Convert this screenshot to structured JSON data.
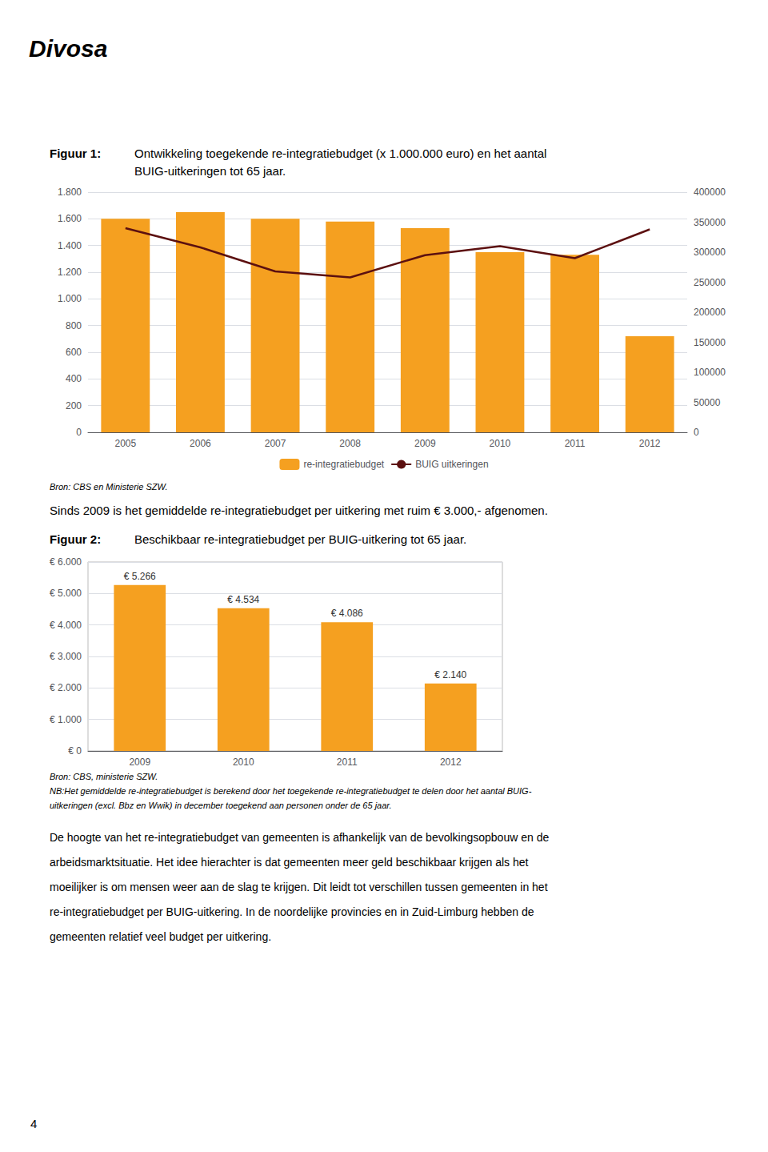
{
  "chart_data": [
    {
      "type": "bar",
      "title": "Figuur 1:",
      "subtitle": "Ontwikkeling toegekende re-integratiebudget (x 1.000.000 euro) en het aantal\nBUIG-uitkeringen tot 65 jaar.",
      "categories": [
        "2005",
        "2006",
        "2007",
        "2008",
        "2009",
        "2010",
        "2011",
        "2012"
      ],
      "series": [
        {
          "name": "re-integratiebudget",
          "type": "bar",
          "color": "#F5A020",
          "values": [
            1.6,
            1.65,
            1.6,
            1.58,
            1.53,
            1.35,
            1.33,
            0.72
          ]
        },
        {
          "name": "BUIG uitkeringen",
          "type": "line",
          "color": "#5C1010",
          "axis": "y2",
          "values": [
            340000,
            308000,
            268000,
            258000,
            295000,
            310000,
            290000,
            338000
          ]
        }
      ],
      "ylim": [
        0,
        1.8
      ],
      "yticks": [
        0,
        {
          "value": 0.2,
          "label": "200"
        },
        {
          "value": 0.4,
          "label": "400"
        },
        {
          "value": 0.6,
          "label": "600"
        },
        {
          "value": 0.8,
          "label": "800"
        },
        {
          "value": 1.0,
          "label": "1.000"
        },
        {
          "value": 1.2,
          "label": "1.200"
        },
        {
          "value": 1.4,
          "label": "1.400"
        },
        {
          "value": 1.6,
          "label": "1.600"
        },
        {
          "value": 1.8,
          "label": "1.800"
        }
      ],
      "y2lim": [
        0,
        400000
      ],
      "y2ticks": [
        0,
        50000,
        100000,
        150000,
        200000,
        250000,
        300000,
        350000,
        400000
      ],
      "grid": true,
      "legend": "bottom",
      "annotations": [
        "Bron: CBS en Ministerie SZW."
      ]
    },
    {
      "type": "bar",
      "title": "Figuur 2:",
      "subtitle": "Beschikbaar re-integratiebudget per BUIG-uitkering tot 65 jaar.",
      "categories": [
        "2009",
        "2010",
        "2011",
        "2012"
      ],
      "values": [
        5266,
        4534,
        4086,
        2140
      ],
      "value_labels": [
        "€ 5.266",
        "€ 4.534",
        "€ 4.086",
        "€ 2.140"
      ],
      "data_labels": true,
      "color": "#F5A020",
      "ylim": [
        0,
        6000
      ],
      "yticks": [
        {
          "value": 0,
          "label": "€ 0"
        },
        {
          "value": 1000,
          "label": "€ 1.000"
        },
        {
          "value": 2000,
          "label": "€ 2.000"
        },
        {
          "value": 3000,
          "label": "€ 3.000"
        },
        {
          "value": 4000,
          "label": "€ 4.000"
        },
        {
          "value": 5000,
          "label": "€ 5.000"
        },
        {
          "value": 6000,
          "label": "€ 6.000"
        }
      ],
      "grid": true,
      "annotations": [
        "Bron: CBS, ministerie SZW.",
        "NB:Het gemiddelde re-integratiebudget is berekend door het toegekende re-integratiebudget te delen door het aantal BUIG-",
        "uitkeringen (excl. Bbz en Wwik) in december toegekend aan personen onder de 65 jaar."
      ]
    }
  ],
  "annotations": [
    "Divosa",
    "Sinds 2009 is het gemiddelde re-integratiebudget per uitkering met ruim € 3.000,- afgenomen.",
    "De hoogte van het re-integratiebudget van gemeenten is afhankelijk van de bevolkingsopbouw en de",
    "arbeidsmarktsituatie. Het idee hierachter is dat gemeenten meer geld beschikbaar krijgen als het",
    "moeilijker is om mensen weer aan de slag te krijgen. Dit leidt tot verschillen tussen gemeenten in het",
    "re-integratiebudget per BUIG-uitkering. In de noordelijke provincies en in Zuid-Limburg hebben de",
    "gemeenten relatief veel budget per uitkering.",
    "4"
  ]
}
